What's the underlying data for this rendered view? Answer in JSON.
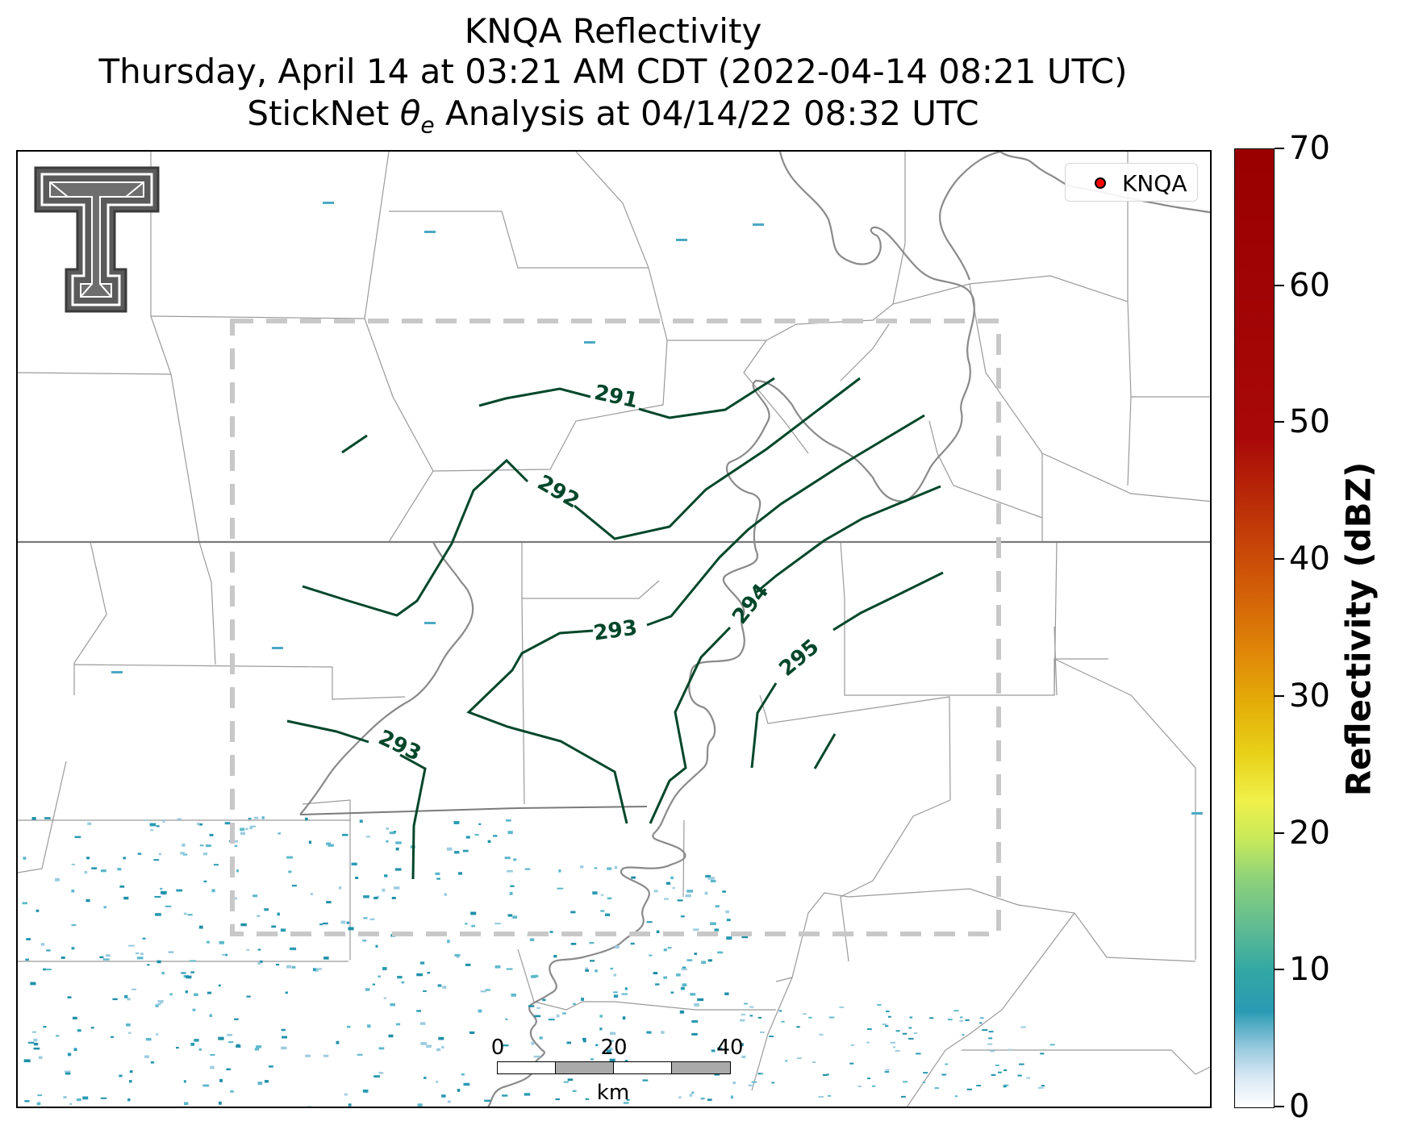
{
  "title": {
    "line1": "KNQA Reflectivity",
    "line2": "Thursday, April 14 at 03:21 AM CDT (2022-04-14 08:21 UTC)",
    "line3_prefix": "StickNet ",
    "line3_theta": "θ",
    "line3_sub": "e",
    "line3_suffix": " Analysis at 04/14/22 08:32 UTC"
  },
  "legend": {
    "station_label": "KNQA",
    "marker_color": "#ff0000"
  },
  "colorbar": {
    "title": "Reflectivity (dBZ)",
    "ticks": [
      "0",
      "10",
      "20",
      "30",
      "40",
      "50",
      "60",
      "70"
    ],
    "range": [
      0,
      70
    ]
  },
  "scale_bar": {
    "ticks": [
      "0",
      "20",
      "40"
    ],
    "unit": "km"
  },
  "contours": {
    "color": "#00472a",
    "labels": [
      {
        "text": "291"
      },
      {
        "text": "292"
      },
      {
        "text": "293"
      },
      {
        "text": "293"
      },
      {
        "text": "294"
      },
      {
        "text": "295"
      }
    ]
  },
  "logo": {
    "name": "Texas Tech Double T"
  },
  "analysis_domain": {
    "style": "dashed",
    "color": "#c8c8c8"
  }
}
